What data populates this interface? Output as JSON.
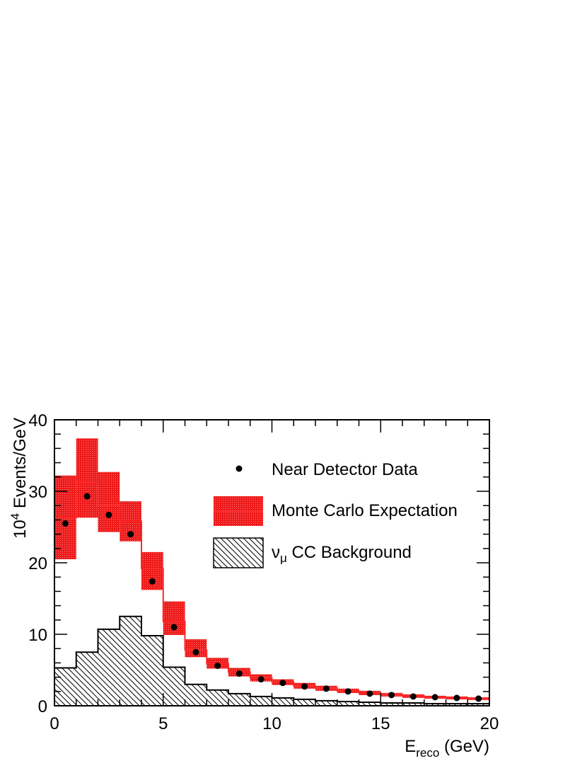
{
  "chart_data": {
    "type": "histogram",
    "xlabel": {
      "main": "E",
      "sub": "reco",
      "rest": " (GeV)"
    },
    "ylabel": {
      "pre": "10",
      "sup": "4",
      "rest": " Events/GeV"
    },
    "xlim": [
      0,
      20
    ],
    "ylim": [
      0,
      40
    ],
    "xticks": [
      "0",
      "5",
      "10",
      "15",
      "20"
    ],
    "yticks": [
      "0",
      "10",
      "20",
      "30",
      "40"
    ],
    "bin_width": 1,
    "legend": [
      {
        "symbol": "marker",
        "label": "Near Detector Data"
      },
      {
        "symbol": "band",
        "label": "Monte Carlo Expectation"
      },
      {
        "symbol": "hatch",
        "label_main": "ν",
        "label_sub": "μ",
        "label_rest": " CC Background"
      }
    ],
    "data": {
      "x": [
        0.5,
        1.5,
        2.5,
        3.5,
        4.5,
        5.5,
        6.5,
        7.5,
        8.5,
        9.5,
        10.5,
        11.5,
        12.5,
        13.5,
        14.5,
        15.5,
        16.5,
        17.5,
        18.5,
        19.5
      ],
      "y": [
        25.5,
        29.3,
        26.7,
        24.0,
        17.4,
        11.0,
        7.5,
        5.6,
        4.5,
        3.7,
        3.2,
        2.7,
        2.4,
        2.0,
        1.7,
        1.5,
        1.3,
        1.2,
        1.1,
        1.0
      ]
    },
    "mc": {
      "center": [
        26.3,
        31.2,
        28.0,
        25.8,
        19.2,
        11.8,
        7.8,
        5.9,
        4.7,
        3.9,
        3.3,
        2.8,
        2.5,
        2.1,
        1.8,
        1.6,
        1.4,
        1.2,
        1.1,
        1.0
      ],
      "upper": [
        32.2,
        37.4,
        32.7,
        28.6,
        21.5,
        14.6,
        9.3,
        6.7,
        5.3,
        4.4,
        3.7,
        3.2,
        2.8,
        2.4,
        2.1,
        1.8,
        1.6,
        1.4,
        1.3,
        1.2
      ],
      "lower": [
        20.5,
        26.3,
        24.3,
        23.0,
        16.2,
        9.9,
        6.8,
        5.2,
        4.1,
        3.4,
        2.9,
        2.4,
        2.1,
        1.8,
        1.5,
        1.3,
        1.1,
        1.0,
        0.9,
        0.8
      ]
    },
    "background": [
      5.3,
      7.5,
      10.7,
      12.5,
      9.8,
      5.4,
      3.0,
      2.2,
      1.7,
      1.3,
      1.1,
      0.9,
      0.7,
      0.6,
      0.5,
      0.4,
      0.4,
      0.3,
      0.3,
      0.3
    ],
    "colors": {
      "mc_band": "#ee1a1a",
      "mc_line": "#ff2a2a",
      "data": "#000000",
      "axis": "#000000"
    }
  }
}
